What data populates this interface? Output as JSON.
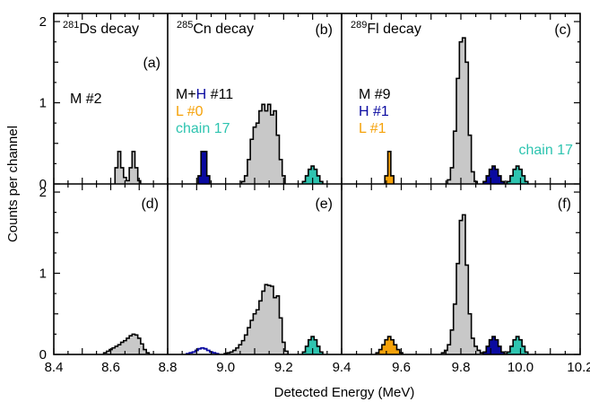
{
  "chart_data": {
    "type": "histogram-grid",
    "xlabel": "Detected Energy (MeV)",
    "ylabel": "Counts per channel",
    "columns": [
      {
        "xlim": [
          8.4,
          8.8
        ],
        "xticks": [
          "8.4",
          "8.6",
          "8.8"
        ]
      },
      {
        "xlim": [
          8.8,
          9.4
        ],
        "xticks": [
          "9.0",
          "9.2",
          "9.4"
        ]
      },
      {
        "xlim": [
          9.4,
          10.2
        ],
        "xticks": [
          "9.6",
          "9.8",
          "10.0",
          "10.2"
        ]
      }
    ],
    "yticks": [
      "0",
      "1",
      "2"
    ],
    "ylim": [
      0,
      2.1
    ],
    "colors": {
      "M": "#c8c8c8",
      "H": "#0a0aa0",
      "L": "#f5a20a",
      "chain17": "#2ec4b0"
    },
    "panels": [
      {
        "id": "a",
        "row": 0,
        "col": 0,
        "nucleus_mass": "281",
        "nucleus": "Ds decay",
        "panel_label": "(a)",
        "legend": [
          {
            "parts": [
              {
                "text": "M #2",
                "color": "#000000"
              }
            ]
          }
        ],
        "series": [
          {
            "name": "M #2",
            "color": "#c8c8c8",
            "style": "filled",
            "centers": [
              8.62,
              8.63,
              8.64,
              8.65,
              8.66,
              8.67,
              8.68,
              8.69,
              8.7
            ],
            "values": [
              0.2,
              0.4,
              0.2,
              0.08,
              0.04,
              0.2,
              0.4,
              0.2,
              0.04
            ]
          }
        ]
      },
      {
        "id": "b",
        "row": 0,
        "col": 1,
        "nucleus_mass": "285",
        "nucleus": "Cn decay",
        "panel_label": "(b)",
        "legend": [
          {
            "parts": [
              {
                "text": "M+",
                "color": "#000000"
              },
              {
                "text": "H",
                "color": "#0a0aa0"
              },
              {
                "text": " #11",
                "color": "#000000"
              }
            ]
          },
          {
            "parts": [
              {
                "text": "L #0",
                "color": "#f5a20a"
              }
            ]
          },
          {
            "parts": [
              {
                "text": "chain 17",
                "color": "#2ec4b0"
              }
            ]
          }
        ],
        "series": [
          {
            "name": "H",
            "color": "#0a0aa0",
            "style": "filled",
            "centers": [
              8.91,
              8.92,
              8.93,
              8.94
            ],
            "values": [
              0.1,
              0.4,
              0.4,
              0.1
            ]
          },
          {
            "name": "M",
            "color": "#c8c8c8",
            "style": "filled",
            "centers": [
              9.06,
              9.07,
              9.08,
              9.09,
              9.1,
              9.11,
              9.12,
              9.13,
              9.14,
              9.15,
              9.16,
              9.17,
              9.18,
              9.19,
              9.2
            ],
            "values": [
              0.03,
              0.1,
              0.3,
              0.55,
              0.7,
              0.75,
              0.9,
              0.98,
              0.9,
              0.98,
              0.85,
              0.9,
              0.6,
              0.3,
              0.1
            ]
          },
          {
            "name": "chain 17",
            "color": "#2ec4b0",
            "style": "filled",
            "centers": [
              9.27,
              9.28,
              9.29,
              9.3,
              9.31,
              9.32,
              9.33
            ],
            "values": [
              0.03,
              0.1,
              0.18,
              0.22,
              0.18,
              0.1,
              0.03
            ]
          }
        ]
      },
      {
        "id": "c",
        "row": 0,
        "col": 2,
        "nucleus_mass": "289",
        "nucleus": "Fl decay",
        "panel_label": "(c)",
        "legend": [
          {
            "parts": [
              {
                "text": "M #9",
                "color": "#000000"
              }
            ]
          },
          {
            "parts": [
              {
                "text": "H #1",
                "color": "#0a0aa0"
              }
            ]
          },
          {
            "parts": [
              {
                "text": "L #1",
                "color": "#f5a20a"
              }
            ]
          }
        ],
        "extra_label": {
          "text": "chain 17",
          "color": "#2ec4b0"
        },
        "series": [
          {
            "name": "L",
            "color": "#f5a20a",
            "style": "filled",
            "centers": [
              9.55,
              9.56,
              9.57
            ],
            "values": [
              0.1,
              0.4,
              0.1
            ]
          },
          {
            "name": "M",
            "color": "#c8c8c8",
            "style": "filled",
            "centers": [
              9.76,
              9.77,
              9.78,
              9.79,
              9.8,
              9.81,
              9.82,
              9.83,
              9.84,
              9.85
            ],
            "values": [
              0.05,
              0.2,
              0.65,
              1.3,
              1.75,
              1.8,
              1.5,
              0.6,
              0.15,
              0.03
            ]
          },
          {
            "name": "H",
            "color": "#0a0aa0",
            "style": "filled",
            "centers": [
              9.88,
              9.89,
              9.9,
              9.91,
              9.92,
              9.93,
              9.94
            ],
            "values": [
              0.03,
              0.1,
              0.18,
              0.22,
              0.18,
              0.1,
              0.03
            ]
          },
          {
            "name": "chain 17",
            "color": "#2ec4b0",
            "style": "filled",
            "centers": [
              9.96,
              9.97,
              9.98,
              9.99,
              10.0,
              10.01,
              10.02
            ],
            "values": [
              0.03,
              0.1,
              0.18,
              0.22,
              0.18,
              0.1,
              0.03
            ]
          }
        ]
      },
      {
        "id": "d",
        "row": 1,
        "col": 0,
        "panel_label": "(d)",
        "series": [
          {
            "name": "M",
            "color": "#c8c8c8",
            "style": "filled",
            "centers": [
              8.58,
              8.59,
              8.6,
              8.61,
              8.62,
              8.63,
              8.64,
              8.65,
              8.66,
              8.67,
              8.68,
              8.69,
              8.7,
              8.71,
              8.72,
              8.73
            ],
            "values": [
              0.02,
              0.04,
              0.06,
              0.08,
              0.1,
              0.12,
              0.15,
              0.17,
              0.2,
              0.23,
              0.25,
              0.24,
              0.2,
              0.13,
              0.06,
              0.02
            ]
          }
        ]
      },
      {
        "id": "e",
        "row": 1,
        "col": 1,
        "panel_label": "(e)",
        "series": [
          {
            "name": "H",
            "color": "#0a0aa0",
            "style": "outline",
            "centers": [
              8.87,
              8.88,
              8.89,
              8.9,
              8.91,
              8.92,
              8.93,
              8.94,
              8.95,
              8.96,
              8.97
            ],
            "values": [
              0.01,
              0.02,
              0.03,
              0.05,
              0.07,
              0.08,
              0.07,
              0.05,
              0.03,
              0.02,
              0.01
            ]
          },
          {
            "name": "M",
            "color": "#c8c8c8",
            "style": "filled",
            "centers": [
              9.0,
              9.01,
              9.02,
              9.03,
              9.04,
              9.05,
              9.06,
              9.07,
              9.08,
              9.09,
              9.1,
              9.11,
              9.12,
              9.13,
              9.14,
              9.15,
              9.16,
              9.17,
              9.18,
              9.19,
              9.2,
              9.21
            ],
            "values": [
              0.01,
              0.02,
              0.03,
              0.05,
              0.08,
              0.12,
              0.17,
              0.24,
              0.33,
              0.42,
              0.5,
              0.55,
              0.66,
              0.78,
              0.86,
              0.85,
              0.84,
              0.7,
              0.72,
              0.45,
              0.15,
              0.04
            ]
          },
          {
            "name": "chain 17",
            "color": "#2ec4b0",
            "style": "filled",
            "centers": [
              9.27,
              9.28,
              9.29,
              9.3,
              9.31,
              9.32,
              9.33
            ],
            "values": [
              0.03,
              0.1,
              0.18,
              0.22,
              0.18,
              0.1,
              0.03
            ]
          }
        ]
      },
      {
        "id": "f",
        "row": 1,
        "col": 2,
        "panel_label": "(f)",
        "series": [
          {
            "name": "L",
            "color": "#f5a20a",
            "style": "filled",
            "centers": [
              9.52,
              9.53,
              9.54,
              9.55,
              9.56,
              9.57,
              9.58,
              9.59,
              9.6
            ],
            "values": [
              0.02,
              0.06,
              0.12,
              0.18,
              0.22,
              0.18,
              0.12,
              0.06,
              0.02
            ]
          },
          {
            "name": "M",
            "color": "#c8c8c8",
            "style": "filled",
            "centers": [
              9.74,
              9.75,
              9.76,
              9.77,
              9.78,
              9.79,
              9.8,
              9.81,
              9.82,
              9.83,
              9.84,
              9.85,
              9.86,
              9.87
            ],
            "values": [
              0.02,
              0.05,
              0.12,
              0.3,
              0.62,
              1.12,
              1.65,
              1.72,
              1.1,
              0.5,
              0.2,
              0.1,
              0.05,
              0.02
            ]
          },
          {
            "name": "H",
            "color": "#0a0aa0",
            "style": "filled",
            "centers": [
              9.88,
              9.89,
              9.9,
              9.91,
              9.92,
              9.93,
              9.94
            ],
            "values": [
              0.03,
              0.1,
              0.18,
              0.22,
              0.18,
              0.1,
              0.03
            ]
          },
          {
            "name": "chain 17",
            "color": "#2ec4b0",
            "style": "filled",
            "centers": [
              9.96,
              9.97,
              9.98,
              9.99,
              10.0,
              10.01,
              10.02
            ],
            "values": [
              0.03,
              0.1,
              0.18,
              0.22,
              0.18,
              0.1,
              0.03
            ]
          }
        ]
      }
    ]
  }
}
